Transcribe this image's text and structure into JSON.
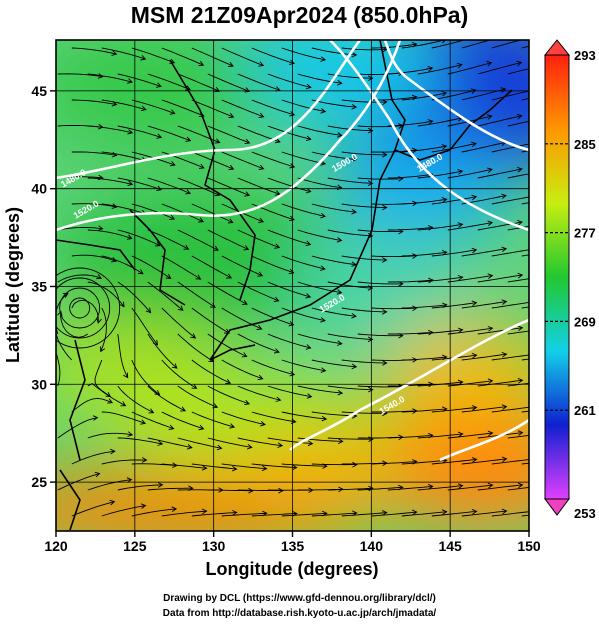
{
  "title": "MSM 21Z09Apr2024 (850.0hPa)",
  "credits": [
    "Drawing by DCL (https://www.gfd-dennou.org/library/dcl/)",
    "Data from http://database.rish.kyoto-u.ac.jp/arch/jmadata/"
  ],
  "chart_data": {
    "type": "heatmap",
    "title": "MSM 21Z09Apr2024 (850.0hPa)",
    "xlabel": "Longitude (degrees)",
    "ylabel": "Latitude  (degrees)",
    "xlim": [
      120,
      150
    ],
    "ylim": [
      22.5,
      47.6
    ],
    "x_ticks": [
      120,
      125,
      130,
      135,
      140,
      145,
      150
    ],
    "y_ticks": [
      25,
      30,
      35,
      40,
      45
    ],
    "grid": true,
    "colorbar": {
      "min": 253,
      "max": 293,
      "ticks": [
        293,
        285,
        277,
        269,
        261,
        253
      ],
      "colors": [
        "#e040ff",
        "#1020d0",
        "#12d0e8",
        "#22c830",
        "#c8ee10",
        "#ff9600",
        "#ff2010"
      ]
    },
    "contours": [
      {
        "label": "1480.0",
        "lon": 121.2,
        "lat": 40.4
      },
      {
        "label": "1520.0",
        "lon": 122.0,
        "lat": 38.8
      },
      {
        "label": "1480.0",
        "lon": 143.8,
        "lat": 41.2
      },
      {
        "label": "1500.0",
        "lon": 138.4,
        "lat": 41.2
      },
      {
        "label": "1520.0",
        "lon": 137.6,
        "lat": 34.0
      },
      {
        "label": "1540.0",
        "lon": 141.4,
        "lat": 28.8
      }
    ],
    "vortex": {
      "lon": 121.5,
      "lat": 33.9
    }
  }
}
